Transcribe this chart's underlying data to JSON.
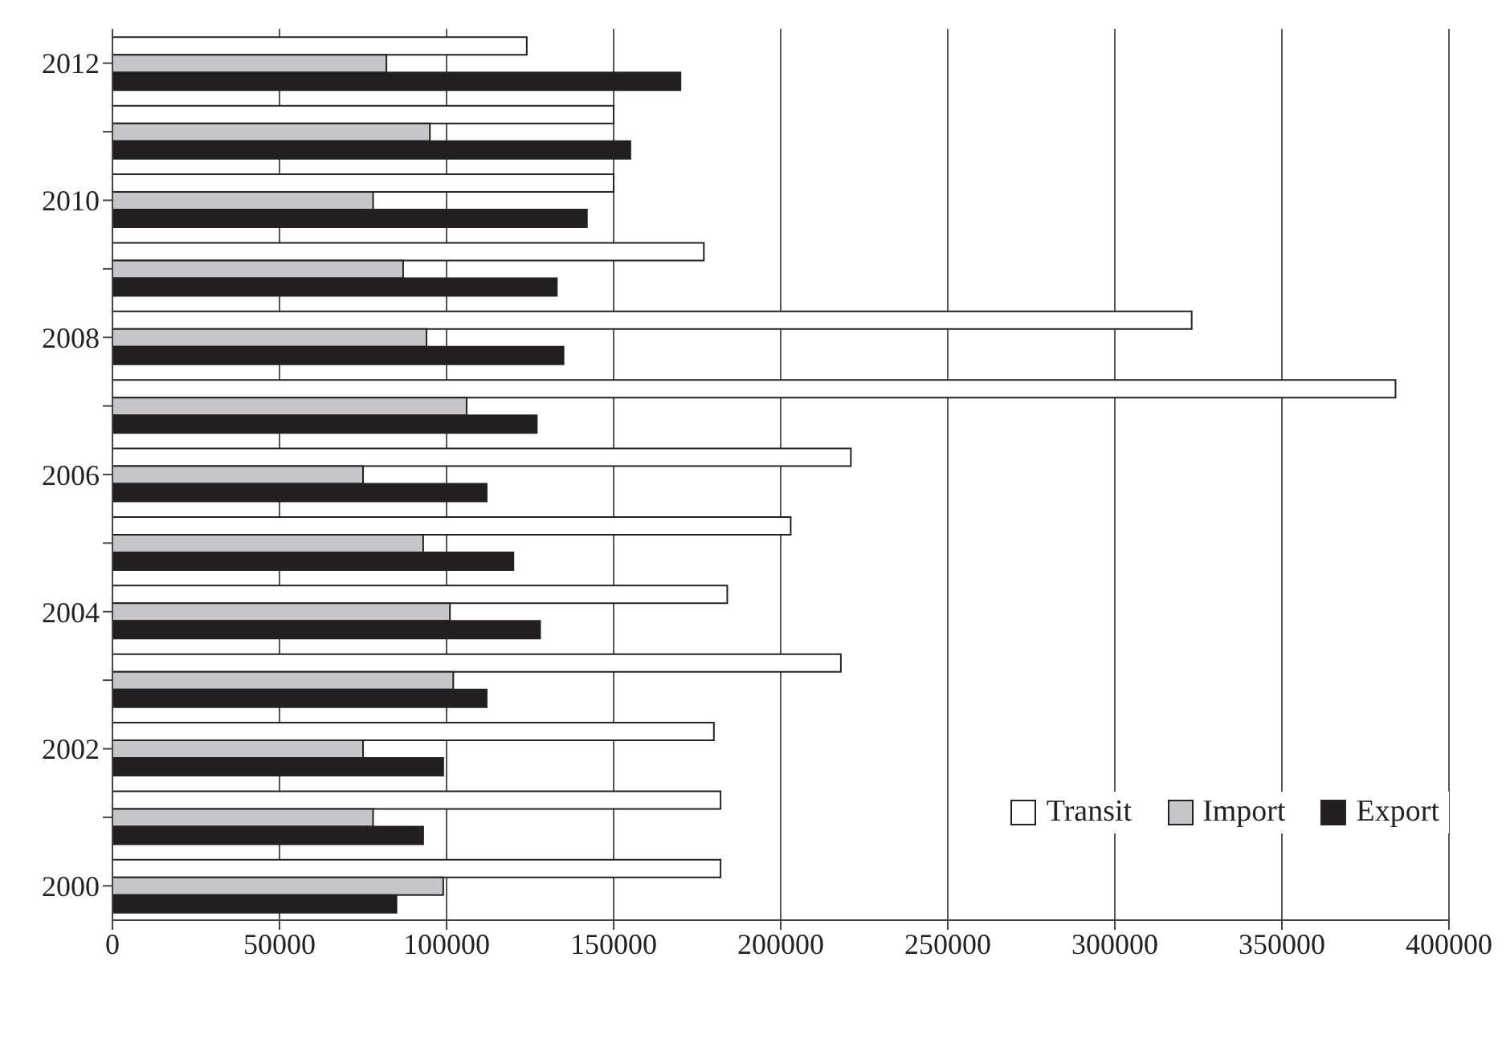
{
  "chart_data": {
    "type": "bar",
    "orientation": "horizontal",
    "categories": [
      "2012",
      null,
      "2010",
      null,
      "2008",
      null,
      "2006",
      null,
      "2004",
      null,
      "2002",
      null,
      "2000"
    ],
    "series": [
      {
        "name": "Transit",
        "color": "#ffffff",
        "values": [
          124000,
          150000,
          150000,
          177000,
          323000,
          384000,
          221000,
          203000,
          184000,
          218000,
          180000,
          182000,
          182000
        ]
      },
      {
        "name": "Import",
        "color": "#c6c6ca",
        "values": [
          82000,
          95000,
          78000,
          87000,
          94000,
          106000,
          75000,
          93000,
          101000,
          102000,
          75000,
          78000,
          99000
        ]
      },
      {
        "name": "Export",
        "color": "#231f20",
        "values": [
          170000,
          155000,
          142000,
          133000,
          135000,
          127000,
          112000,
          120000,
          128000,
          112000,
          99000,
          93000,
          85000
        ]
      }
    ],
    "xlim": [
      0,
      400000
    ],
    "xticks": [
      0,
      50000,
      100000,
      150000,
      200000,
      250000,
      300000,
      350000,
      400000
    ],
    "grid": "x",
    "legend": "bottom right"
  }
}
